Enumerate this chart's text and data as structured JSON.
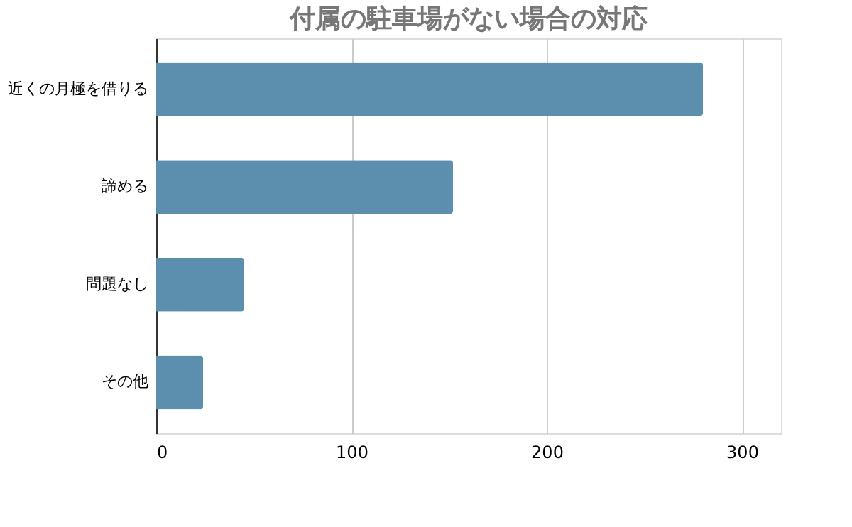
{
  "chart_data": {
    "type": "bar",
    "orientation": "horizontal",
    "title": "付属の駐車場がない場合の対応",
    "categories": [
      "近くの月極を借りる",
      "諦める",
      "問題なし",
      "その他"
    ],
    "values": [
      280,
      152,
      45,
      24
    ],
    "color": "#5b8fad",
    "xlim": [
      0,
      320
    ],
    "xticks": [
      0,
      100,
      200,
      300
    ],
    "grid": "x"
  }
}
